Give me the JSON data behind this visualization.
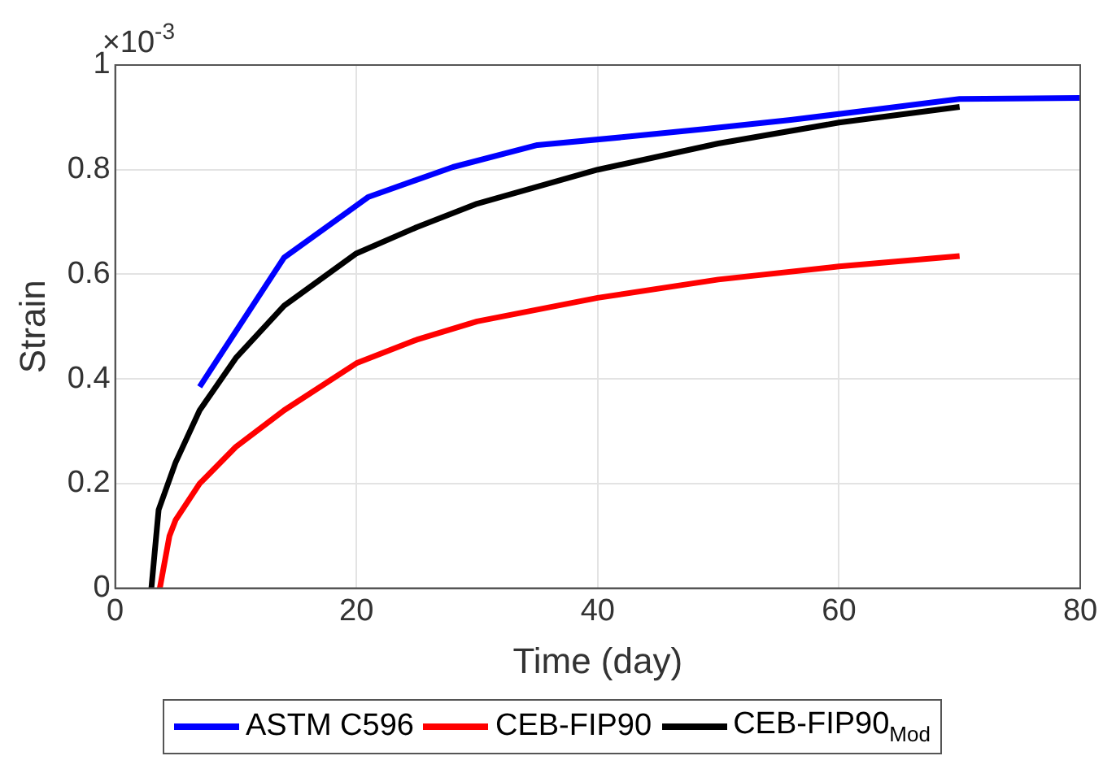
{
  "chart_data": {
    "type": "line",
    "xlabel": "Time (day)",
    "ylabel": "Strain",
    "annotations": [
      "×10$^{-3}$"
    ],
    "xlim": [
      0,
      80
    ],
    "xticks": [
      0,
      20,
      40,
      60,
      80
    ],
    "ylim": [
      0,
      1
    ],
    "yticks": [
      0,
      0.2,
      0.4,
      0.6,
      0.8,
      1
    ],
    "grid": true,
    "legend": "bottom",
    "marker": "none",
    "line_style": "solid",
    "series": [
      {
        "name": "ASTM C596",
        "color": "#0000ff",
        "x": [
          7,
          14,
          21,
          28,
          35,
          42,
          49,
          56,
          63,
          70,
          80
        ],
        "values": [
          0.385,
          0.632,
          0.748,
          0.805,
          0.847,
          0.862,
          0.878,
          0.895,
          0.915,
          0.935,
          0.937
        ]
      },
      {
        "name": "CEB-FIP90",
        "color": "#ff0000",
        "x": [
          3.7,
          4.5,
          5,
          7,
          10,
          14,
          20,
          25,
          30,
          40,
          50,
          60,
          70
        ],
        "values": [
          0,
          0.1,
          0.13,
          0.2,
          0.27,
          0.34,
          0.43,
          0.475,
          0.51,
          0.555,
          0.59,
          0.615,
          0.635
        ]
      },
      {
        "name": "CEB-FIP90$_{Mod}$",
        "color": "#000000",
        "x": [
          3,
          3.6,
          5,
          7,
          10,
          14,
          20,
          25,
          30,
          40,
          50,
          60,
          70
        ],
        "values": [
          0,
          0.15,
          0.24,
          0.34,
          0.44,
          0.54,
          0.64,
          0.69,
          0.735,
          0.8,
          0.85,
          0.89,
          0.92
        ]
      }
    ]
  }
}
